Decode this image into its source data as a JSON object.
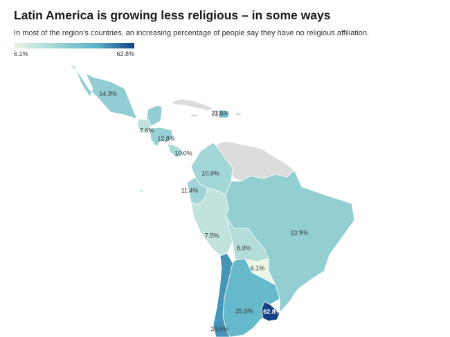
{
  "title": "Latin America is growing less religious – in some ways",
  "subtitle": "In most of the region's countries, an increasing percentage of people say they have no religious affiliation.",
  "legend": {
    "min_label": "6.1%",
    "max_label": "62.8%",
    "min_color": "#e8f6e3",
    "mid_color": "#56b1c8",
    "max_color": "#173f86"
  },
  "colors": {
    "no_data": "#dcdcdc",
    "border": "#ffffff"
  },
  "countries": [
    {
      "name": "Mexico",
      "value": 14.3,
      "label": "14.3%"
    },
    {
      "name": "Guatemala",
      "value": 7.6,
      "label": "7.6%"
    },
    {
      "name": "Honduras",
      "value": 12.8,
      "label": "12.8%"
    },
    {
      "name": "Costa Rica",
      "value": 10.0,
      "label": "10.0%"
    },
    {
      "name": "Dominican Republic",
      "value": 21.5,
      "label": "21.5%"
    },
    {
      "name": "Colombia",
      "value": 10.9,
      "label": "10.9%"
    },
    {
      "name": "Ecuador",
      "value": 11.4,
      "label": "11.4%"
    },
    {
      "name": "Peru",
      "value": 7.5,
      "label": "7.5%"
    },
    {
      "name": "Brazil",
      "value": 13.9,
      "label": "13.9%"
    },
    {
      "name": "Bolivia",
      "value": 8.9,
      "label": "8.9%"
    },
    {
      "name": "Paraguay",
      "value": 6.1,
      "label": "6.1%"
    },
    {
      "name": "Argentina",
      "value": 25.9,
      "label": "25.9%"
    },
    {
      "name": "Uruguay",
      "value": 62.8,
      "label": "62.8%"
    },
    {
      "name": "Chile",
      "value": 38.5,
      "label": "38.5%"
    }
  ]
}
